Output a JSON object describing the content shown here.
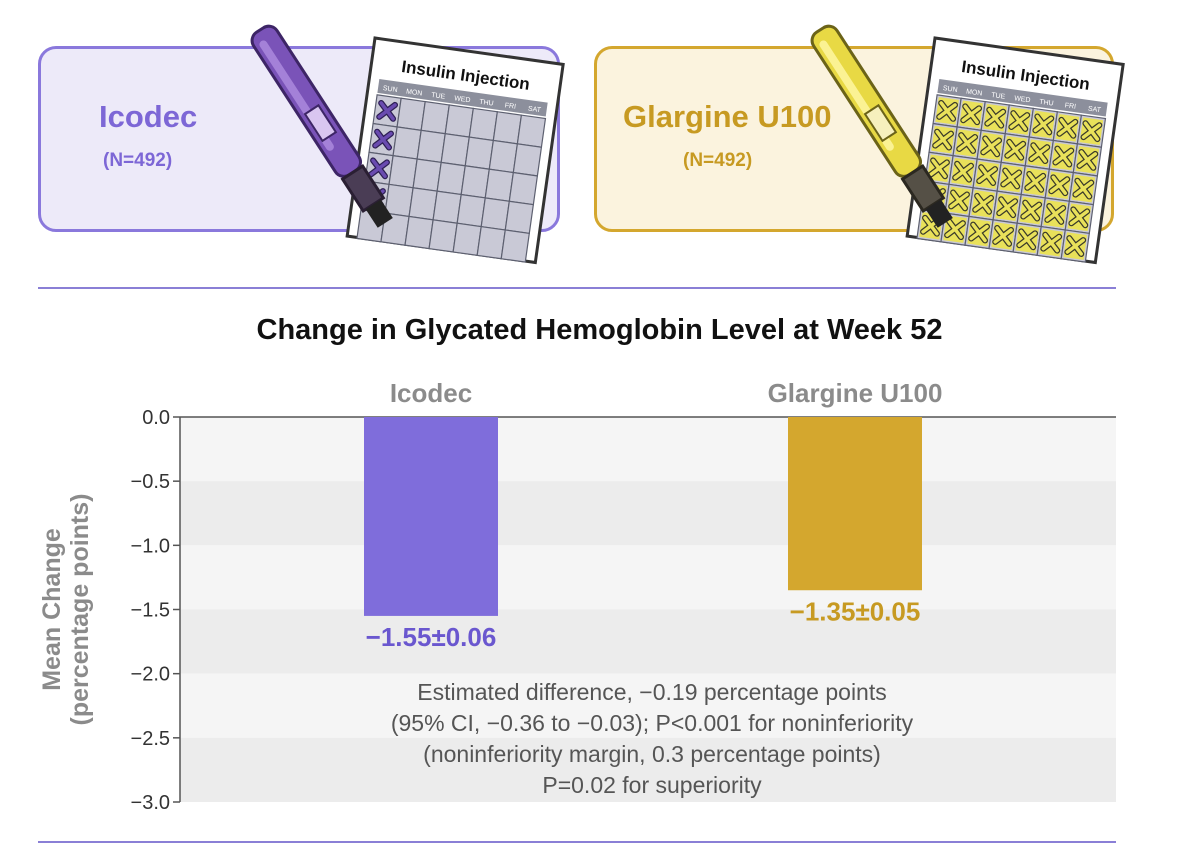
{
  "arms": [
    {
      "name": "Icodec",
      "n_label": "(N=492)",
      "color": "#7d67d6"
    },
    {
      "name": "Glargine U100",
      "n_label": "(N=492)",
      "color": "#c79a22"
    }
  ],
  "illustration": {
    "card_title": "Insulin Injection",
    "days": [
      "SUN",
      "MON",
      "TUE",
      "WED",
      "THU",
      "FRI",
      "SAT"
    ]
  },
  "chart_data": {
    "type": "bar",
    "title": "Change in Glycated Hemoglobin Level at Week 52",
    "ylabel": [
      "Mean Change",
      "(percentage points)"
    ],
    "ylim": [
      -3.0,
      0.0
    ],
    "yticks": [
      0.0,
      -0.5,
      -1.0,
      -1.5,
      -2.0,
      -2.5,
      -3.0
    ],
    "ytick_labels": [
      "0.0",
      "−0.5",
      "−1.0",
      "−1.5",
      "−2.0",
      "−2.5",
      "−3.0"
    ],
    "categories": [
      "Icodec",
      "Glargine U100"
    ],
    "values": [
      -1.55,
      -1.35
    ],
    "value_labels": [
      "−1.55±0.06",
      "−1.35±0.05"
    ],
    "colors": [
      "#7f6ddb",
      "#d4a72e"
    ],
    "label_colors": [
      "#6a57cf",
      "#c79a22"
    ],
    "annotation": [
      "Estimated difference, −0.19 percentage points",
      "(95% CI, −0.36 to −0.03); P<0.001 for noninferiority",
      "(noninferiority margin, 0.3 percentage points)",
      "P=0.02 for superiority"
    ]
  }
}
